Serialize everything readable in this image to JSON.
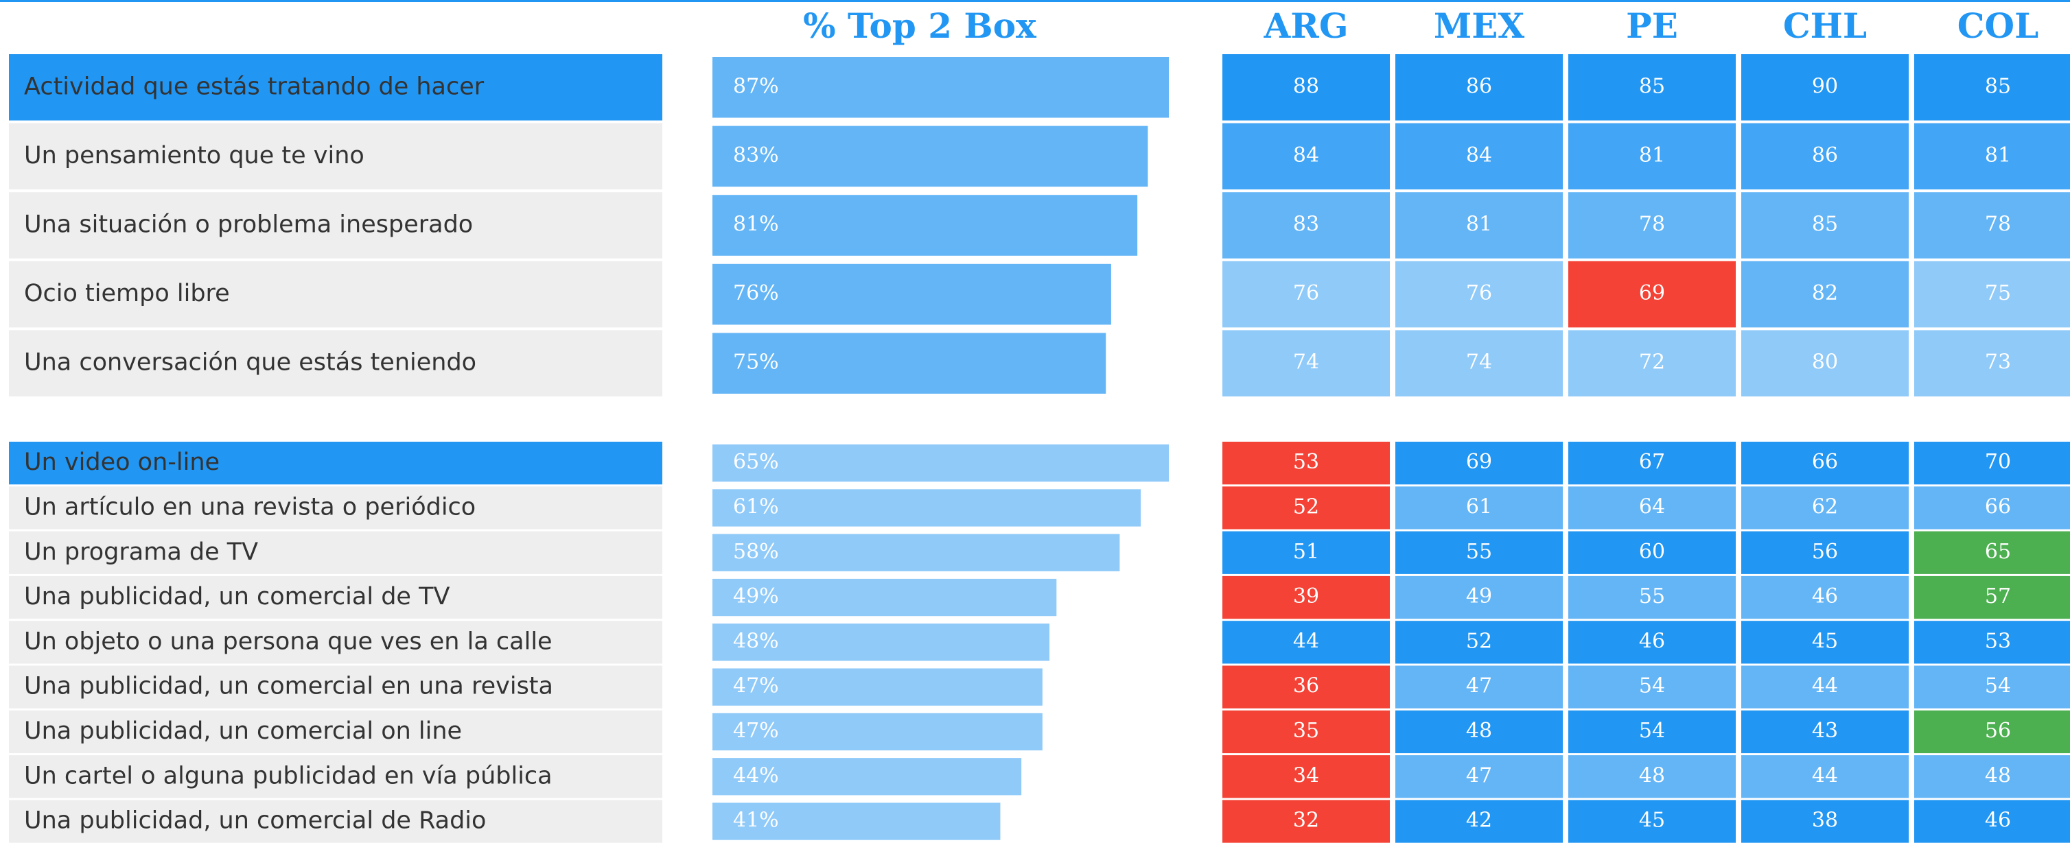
{
  "header": {
    "bar_title": "% Top 2 Box",
    "countries": [
      "ARG",
      "MEX",
      "PE",
      "CHL",
      "COL"
    ]
  },
  "chart_data": [
    {
      "type": "bar",
      "orientation": "horizontal",
      "color": "#64b5f6",
      "xlim": [
        0,
        87
      ],
      "categories": [
        "Actividad que estás tratando de hacer",
        "Un pensamiento que te vino",
        "Una situación o problema inesperado",
        "Ocio tiempo libre",
        "Una conversación que estás teniendo"
      ],
      "values": [
        87,
        83,
        81,
        76,
        75
      ],
      "value_labels": [
        "87%",
        "83%",
        "81%",
        "76%",
        "75%"
      ],
      "cells": [
        [
          88,
          86,
          85,
          90,
          85
        ],
        [
          84,
          84,
          81,
          86,
          81
        ],
        [
          83,
          81,
          78,
          85,
          78
        ],
        [
          76,
          76,
          69,
          82,
          75
        ],
        [
          74,
          74,
          72,
          80,
          73
        ]
      ],
      "cell_colors": [
        [
          "#2196f3",
          "#2196f3",
          "#2196f3",
          "#2196f3",
          "#2196f3"
        ],
        [
          "#42a5f5",
          "#42a5f5",
          "#42a5f5",
          "#42a5f5",
          "#42a5f5"
        ],
        [
          "#64b5f6",
          "#64b5f6",
          "#64b5f6",
          "#64b5f6",
          "#64b5f6"
        ],
        [
          "#90caf9",
          "#90caf9",
          "#f44336",
          "#64b5f6",
          "#90caf9"
        ],
        [
          "#90caf9",
          "#90caf9",
          "#90caf9",
          "#90caf9",
          "#90caf9"
        ]
      ]
    },
    {
      "type": "bar",
      "orientation": "horizontal",
      "color": "#90caf9",
      "xlim": [
        0,
        65
      ],
      "categories": [
        "Un video on-line",
        "Un artículo en una revista o periódico",
        "Un programa de TV",
        "Una publicidad, un comercial de TV",
        "Un objeto o una persona que ves en la calle",
        "Una publicidad, un comercial en una revista",
        "Una publicidad, un comercial on line",
        "Un cartel o alguna publicidad en vía pública",
        "Una publicidad, un comercial de Radio"
      ],
      "values": [
        65,
        61,
        58,
        49,
        48,
        47,
        47,
        44,
        41
      ],
      "value_labels": [
        "65%",
        "61%",
        "58%",
        "49%",
        "48%",
        "47%",
        "47%",
        "44%",
        "41%"
      ],
      "cells": [
        [
          53,
          69,
          67,
          66,
          70
        ],
        [
          52,
          61,
          64,
          62,
          66
        ],
        [
          51,
          55,
          60,
          56,
          65
        ],
        [
          39,
          49,
          55,
          46,
          57
        ],
        [
          44,
          52,
          46,
          45,
          53
        ],
        [
          36,
          47,
          54,
          44,
          54
        ],
        [
          35,
          48,
          54,
          43,
          56
        ],
        [
          34,
          47,
          48,
          44,
          48
        ],
        [
          32,
          42,
          45,
          38,
          46
        ]
      ],
      "cell_colors": [
        [
          "#f44336",
          "#2196f3",
          "#2196f3",
          "#2196f3",
          "#2196f3"
        ],
        [
          "#f44336",
          "#64b5f6",
          "#64b5f6",
          "#64b5f6",
          "#64b5f6"
        ],
        [
          "#2196f3",
          "#2196f3",
          "#2196f3",
          "#2196f3",
          "#4caf50"
        ],
        [
          "#f44336",
          "#64b5f6",
          "#64b5f6",
          "#64b5f6",
          "#4caf50"
        ],
        [
          "#2196f3",
          "#2196f3",
          "#2196f3",
          "#2196f3",
          "#2196f3"
        ],
        [
          "#f44336",
          "#64b5f6",
          "#64b5f6",
          "#64b5f6",
          "#64b5f6"
        ],
        [
          "#f44336",
          "#2196f3",
          "#2196f3",
          "#2196f3",
          "#4caf50"
        ],
        [
          "#f44336",
          "#64b5f6",
          "#64b5f6",
          "#64b5f6",
          "#64b5f6"
        ],
        [
          "#f44336",
          "#2196f3",
          "#2196f3",
          "#2196f3",
          "#2196f3"
        ]
      ]
    }
  ]
}
